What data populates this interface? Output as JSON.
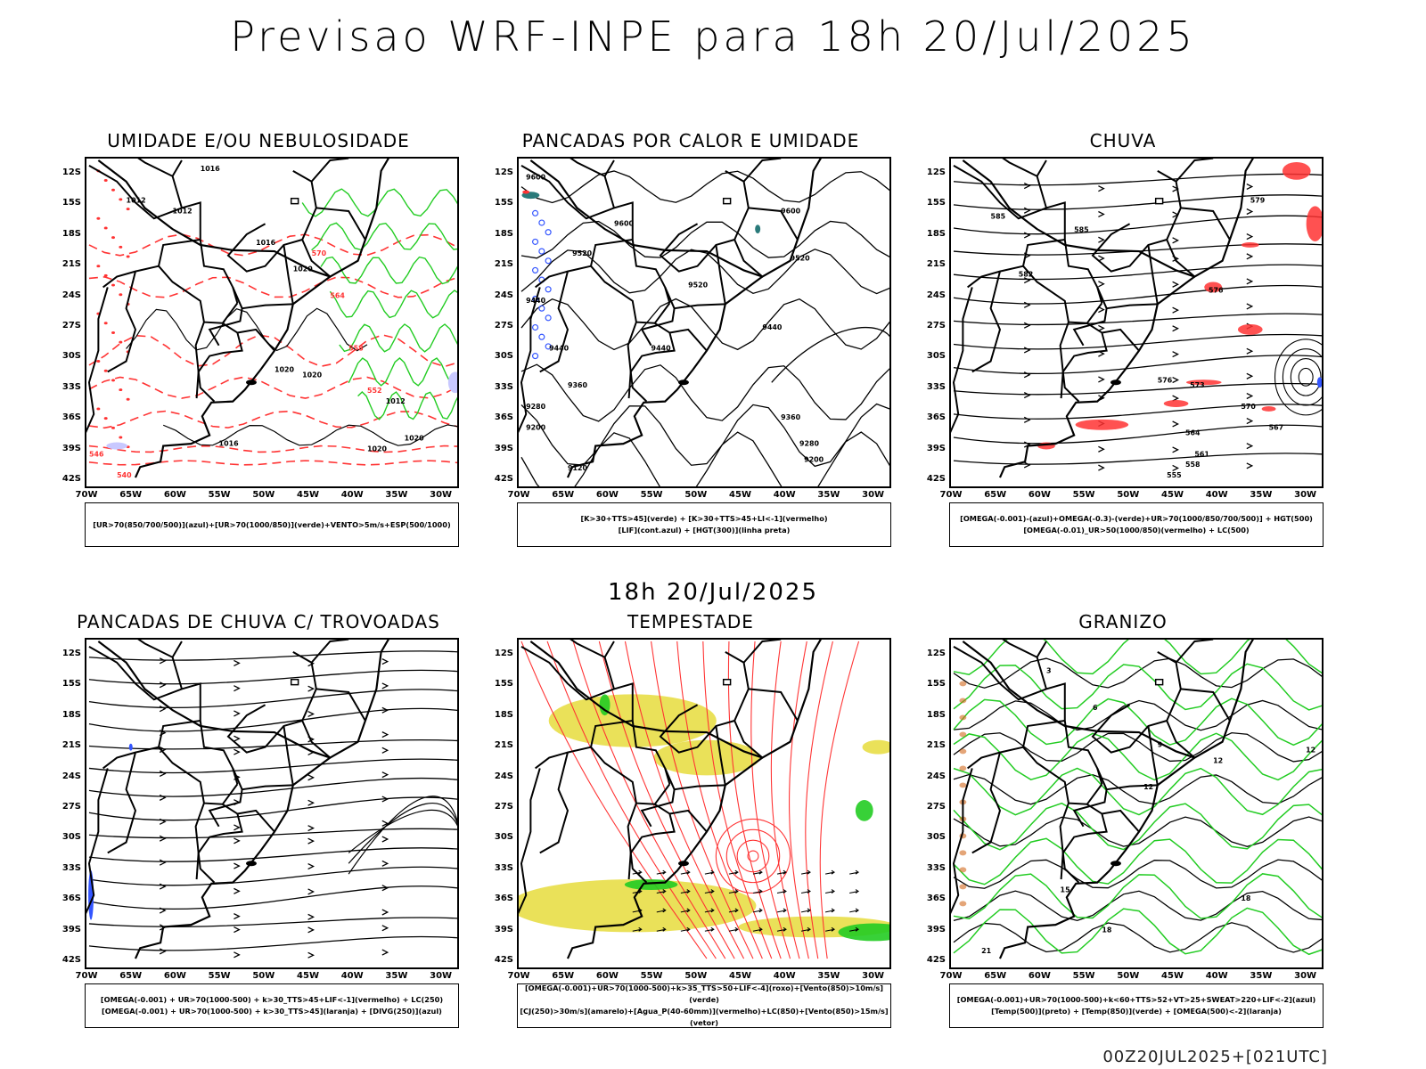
{
  "header": {
    "title": "Previsao WRF-INPE  para 18h 20/Jul/2025",
    "mid_title": "18h 20/Jul/2025",
    "footer": "00Z20JUL2025+[021UTC]"
  },
  "axes": {
    "y_labels": [
      "12S",
      "15S",
      "18S",
      "21S",
      "24S",
      "27S",
      "30S",
      "33S",
      "36S",
      "39S",
      "42S"
    ],
    "x_labels": [
      "70W",
      "65W",
      "60W",
      "55W",
      "50W",
      "45W",
      "40W",
      "35W",
      "30W"
    ]
  },
  "colors": {
    "black": "#000000",
    "red": "#ff3333",
    "green": "#22cc22",
    "blue": "#3355ff",
    "lavender": "#c8c8ff",
    "yellow": "#e6dc3c",
    "teal": "#2a7a7a",
    "orange": "#d2691e"
  },
  "panels": [
    {
      "title": "UMIDADE E/OU NEBULOSIDADE",
      "legend": [
        "[UR>70(850/700/500)](azul)+[UR>70(1000/850)](verde)+VENTO>5m/s+ESP(500/1000)"
      ],
      "contour_labels": [
        "1016",
        "1012",
        "1012",
        "1016",
        "1020",
        "1020",
        "1012",
        "1020",
        "1020",
        "1016",
        "1020",
        "570",
        "564",
        "558",
        "552",
        "546",
        "540"
      ]
    },
    {
      "title": "PANCADAS POR CALOR E UMIDADE",
      "legend": [
        "[K>30+TTS>45](verde) + [K>30+TTS>45+LI<-1](vermelho)",
        "[LIF](cont.azul) + [HGT(300)](linha preta)"
      ],
      "contour_labels": [
        "9600",
        "9600",
        "9600",
        "9520",
        "9520",
        "9520",
        "9440",
        "9440",
        "9440",
        "9440",
        "9360",
        "9360",
        "9280",
        "9280",
        "9200",
        "9200",
        "9120"
      ]
    },
    {
      "title": "CHUVA",
      "legend": [
        "[OMEGA(-0.001)-(azul)+OMEGA(-0.3)-(verde)+UR>70(1000/850/700/500)] + HGT(500)",
        "[OMEGA(-0.01)_UR>50(1000/850)(vermelho) + LC(500)"
      ],
      "contour_labels": [
        "585",
        "585",
        "582",
        "579",
        "576",
        "576",
        "573",
        "570",
        "567",
        "564",
        "561",
        "558",
        "555"
      ]
    },
    {
      "title": "PANCADAS DE CHUVA C/ TROVOADAS",
      "legend": [
        "[OMEGA(-0.001) + UR>70(1000-500) + k>30_TTS>45+LIF<-1](vermelho) + LC(250)",
        "[OMEGA(-0.001) + UR>70(1000-500) + k>30_TTS>45](laranja) + [DIVG(250)](azul)"
      ],
      "contour_labels": []
    },
    {
      "title": "TEMPESTADE",
      "legend": [
        "[OMEGA(-0.001)+UR>70(1000-500)+k>35_TTS>50+LIF<-4](roxo)+[Vento(850)>10m/s](verde)",
        "[CJ(250)>30m/s](amarelo)+[Agua_P(40-60mm)](vermelho)+LC(850)+[Vento(850)>15m/s](vetor)"
      ],
      "contour_labels": []
    },
    {
      "title": "GRANIZO",
      "legend": [
        "[OMEGA(-0.001)+UR>70(1000-500)+k<60+TTS>52+VT>25+SWEAT>220+LIF<-2](azul)",
        "[Temp(500)](preto) + [Temp(850)](verde) + [OMEGA(500)<-2](laranja)"
      ],
      "contour_labels": [
        "3",
        "6",
        "9",
        "12",
        "12",
        "12",
        "15",
        "18",
        "18",
        "21",
        "18"
      ]
    }
  ]
}
